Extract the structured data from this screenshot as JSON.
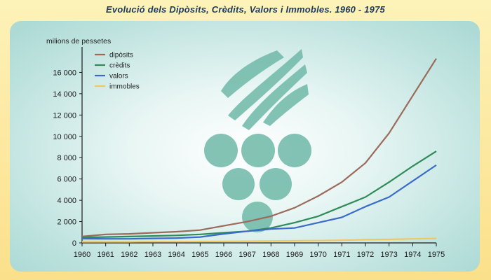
{
  "chart_data": {
    "type": "line",
    "title": "Evolució dels Dipòsits, Crèdits, Valors i Immobles. 1960 - 1975",
    "ylabel": "milions de pessetes",
    "xlabel": "",
    "x": [
      1960,
      1961,
      1962,
      1963,
      1964,
      1965,
      1966,
      1967,
      1968,
      1969,
      1970,
      1971,
      1972,
      1973,
      1974,
      1975
    ],
    "ylim": [
      0,
      18000
    ],
    "yticks": [
      0,
      2000,
      4000,
      6000,
      8000,
      10000,
      12000,
      14000,
      16000
    ],
    "ytick_labels": [
      "0",
      "2 000",
      "4 000",
      "6 000",
      "8 000",
      "10 000",
      "12 000",
      "14 000",
      "16 000"
    ],
    "legend_position": "top-left",
    "grid": false,
    "series": [
      {
        "name": "dipòsits",
        "color": "#9b6a5a",
        "values": [
          600,
          800,
          850,
          950,
          1050,
          1200,
          1600,
          2000,
          2500,
          3300,
          4400,
          5700,
          7500,
          10300,
          13800,
          17300
        ]
      },
      {
        "name": "crèdits",
        "color": "#2e8b57",
        "values": [
          500,
          550,
          600,
          650,
          700,
          800,
          950,
          1100,
          1400,
          1900,
          2500,
          3400,
          4300,
          5700,
          7200,
          8600
        ]
      },
      {
        "name": "valors",
        "color": "#3a6bc8",
        "values": [
          400,
          380,
          380,
          420,
          450,
          550,
          850,
          1100,
          1300,
          1400,
          1900,
          2400,
          3400,
          4300,
          5800,
          7300
        ]
      },
      {
        "name": "immobles",
        "color": "#f0c860",
        "values": [
          100,
          100,
          100,
          120,
          120,
          130,
          140,
          160,
          180,
          200,
          220,
          250,
          300,
          330,
          380,
          420
        ]
      }
    ]
  }
}
